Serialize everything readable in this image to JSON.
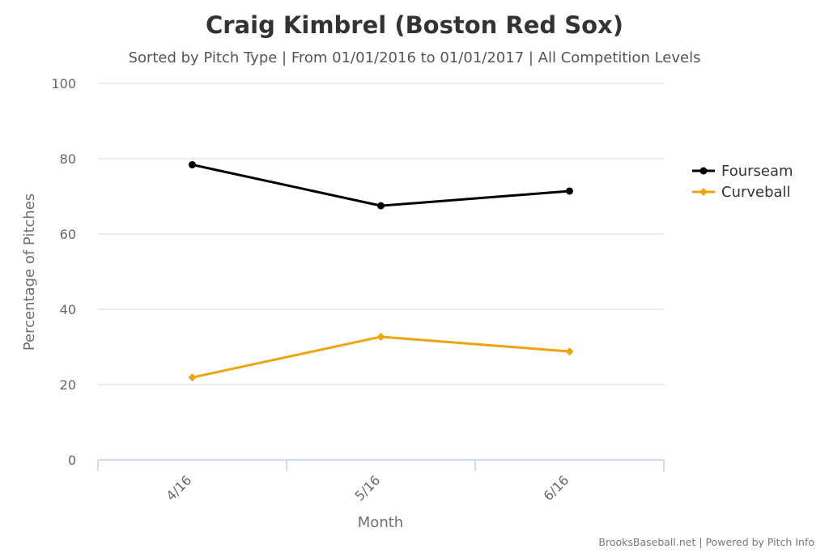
{
  "chart_data": {
    "type": "line",
    "title": "Craig Kimbrel (Boston Red Sox)",
    "subtitle": "Sorted by Pitch Type | From 01/01/2016 to 01/01/2017 | All Competition Levels",
    "xlabel": "Month",
    "ylabel": "Percentage of Pitches",
    "categories": [
      "4/16",
      "5/16",
      "6/16"
    ],
    "ylim": [
      0,
      100
    ],
    "yticks": [
      0,
      20,
      40,
      60,
      80,
      100
    ],
    "grid": true,
    "legend_position": "right",
    "series": [
      {
        "name": "Fourseam",
        "values": [
          78.4,
          67.5,
          71.4
        ],
        "color": "#000000",
        "marker": "circle"
      },
      {
        "name": "Curveball",
        "values": [
          21.9,
          32.7,
          28.8
        ],
        "color": "#f0a30a",
        "marker": "diamond"
      }
    ],
    "credits": "BrooksBaseball.net | Powered by Pitch Info"
  }
}
